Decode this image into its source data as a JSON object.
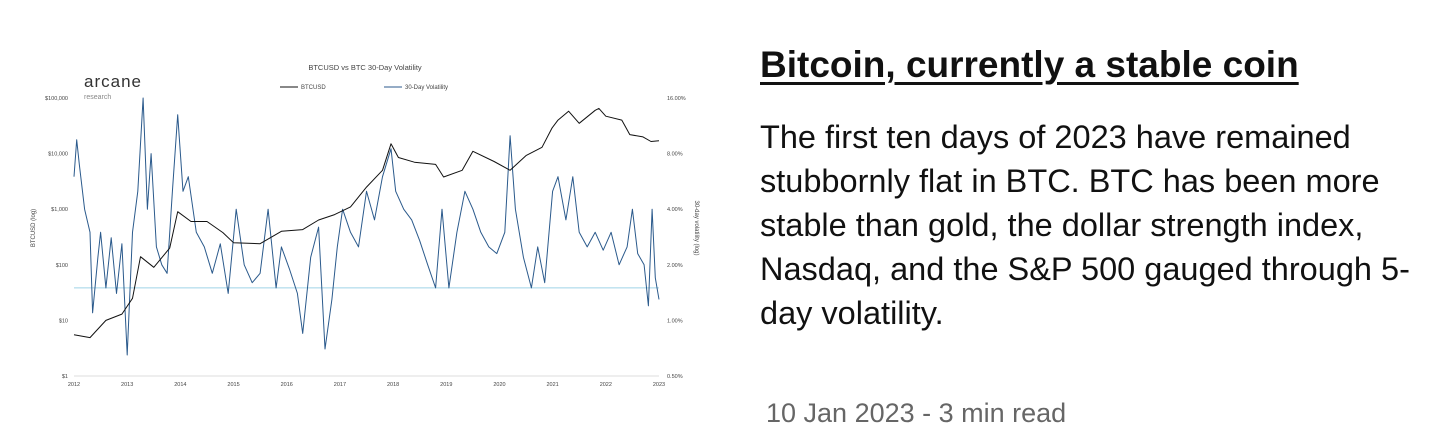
{
  "article": {
    "title": "Bitcoin, currently a stable coin",
    "body": "The first ten days of 2023 have remained stubbornly flat in BTC. BTC has been more stable than gold, the dollar strength index, Nasdaq, and the S&P 500 gauged through 5-day volatility.",
    "meta": "10 Jan 2023 - 3 min read"
  },
  "brand": {
    "name": "arcane",
    "sub": "research"
  },
  "colors": {
    "btc_line": "#111111",
    "volatility_line": "#2b5a8c",
    "reference_line": "#9fd3e6"
  },
  "chart_data": {
    "type": "line",
    "title": "BTCUSD vs BTC 30-Day Volatility",
    "ylabel": "BTCUSD (log)",
    "y2label": "30-day volatility (log)",
    "y_scale": "log",
    "y2_scale": "log",
    "x": [
      "2012",
      "2013",
      "2014",
      "2015",
      "2016",
      "2017",
      "2018",
      "2019",
      "2020",
      "2021",
      "2022",
      "2023"
    ],
    "y_ticks": [
      "$1",
      "$10",
      "$100",
      "$1,000",
      "$10,000",
      "$100,000"
    ],
    "y2_ticks": [
      "0.50%",
      "1.00%",
      "2.00%",
      "4.00%",
      "8.00%",
      "16.00%"
    ],
    "ylim": [
      1,
      100000
    ],
    "y2lim": [
      0.5,
      16
    ],
    "legend_position": "top-center",
    "reference_line_y2": 1.5,
    "series": [
      {
        "name": "BTCUSD",
        "axis": "left",
        "points": [
          [
            2012.0,
            5.5
          ],
          [
            2012.3,
            4.9
          ],
          [
            2012.6,
            10
          ],
          [
            2012.9,
            13
          ],
          [
            2013.1,
            25
          ],
          [
            2013.25,
            140
          ],
          [
            2013.5,
            90
          ],
          [
            2013.8,
            200
          ],
          [
            2013.95,
            900
          ],
          [
            2014.2,
            600
          ],
          [
            2014.5,
            600
          ],
          [
            2014.8,
            380
          ],
          [
            2015.0,
            250
          ],
          [
            2015.5,
            240
          ],
          [
            2015.9,
            400
          ],
          [
            2016.3,
            430
          ],
          [
            2016.6,
            640
          ],
          [
            2016.9,
            800
          ],
          [
            2017.2,
            1100
          ],
          [
            2017.5,
            2500
          ],
          [
            2017.8,
            5000
          ],
          [
            2017.96,
            15000
          ],
          [
            2018.1,
            8500
          ],
          [
            2018.4,
            7000
          ],
          [
            2018.8,
            6400
          ],
          [
            2018.95,
            3800
          ],
          [
            2019.3,
            5000
          ],
          [
            2019.5,
            11000
          ],
          [
            2019.9,
            7200
          ],
          [
            2020.2,
            5000
          ],
          [
            2020.5,
            9200
          ],
          [
            2020.8,
            13000
          ],
          [
            2020.99,
            29000
          ],
          [
            2021.1,
            40000
          ],
          [
            2021.3,
            58000
          ],
          [
            2021.5,
            35000
          ],
          [
            2021.8,
            60000
          ],
          [
            2021.87,
            65000
          ],
          [
            2022.0,
            47000
          ],
          [
            2022.3,
            40000
          ],
          [
            2022.45,
            22000
          ],
          [
            2022.7,
            20000
          ],
          [
            2022.85,
            16500
          ],
          [
            2023.0,
            17000
          ]
        ]
      },
      {
        "name": "30-Day Volatility",
        "axis": "right",
        "points": [
          [
            2012.0,
            6
          ],
          [
            2012.05,
            9.5
          ],
          [
            2012.1,
            7
          ],
          [
            2012.2,
            4
          ],
          [
            2012.3,
            3
          ],
          [
            2012.35,
            1.1
          ],
          [
            2012.45,
            2.2
          ],
          [
            2012.5,
            3
          ],
          [
            2012.6,
            1.5
          ],
          [
            2012.7,
            2.8
          ],
          [
            2012.8,
            1.4
          ],
          [
            2012.9,
            2.6
          ],
          [
            2013.0,
            0.65
          ],
          [
            2013.1,
            3
          ],
          [
            2013.2,
            5
          ],
          [
            2013.3,
            16
          ],
          [
            2013.38,
            4
          ],
          [
            2013.45,
            8
          ],
          [
            2013.55,
            2.5
          ],
          [
            2013.65,
            2
          ],
          [
            2013.75,
            1.8
          ],
          [
            2013.85,
            5
          ],
          [
            2013.95,
            13
          ],
          [
            2014.05,
            5
          ],
          [
            2014.15,
            6
          ],
          [
            2014.3,
            3
          ],
          [
            2014.45,
            2.5
          ],
          [
            2014.6,
            1.8
          ],
          [
            2014.75,
            2.6
          ],
          [
            2014.9,
            1.4
          ],
          [
            2015.05,
            4
          ],
          [
            2015.2,
            2
          ],
          [
            2015.35,
            1.6
          ],
          [
            2015.5,
            1.8
          ],
          [
            2015.65,
            4
          ],
          [
            2015.8,
            1.5
          ],
          [
            2015.9,
            2.5
          ],
          [
            2016.05,
            1.9
          ],
          [
            2016.2,
            1.4
          ],
          [
            2016.3,
            0.85
          ],
          [
            2016.45,
            2.2
          ],
          [
            2016.6,
            3.2
          ],
          [
            2016.72,
            0.7
          ],
          [
            2016.85,
            1.3
          ],
          [
            2016.95,
            2.5
          ],
          [
            2017.05,
            4
          ],
          [
            2017.2,
            3
          ],
          [
            2017.35,
            2.5
          ],
          [
            2017.5,
            5
          ],
          [
            2017.65,
            3.5
          ],
          [
            2017.8,
            6
          ],
          [
            2017.96,
            8.5
          ],
          [
            2018.05,
            5
          ],
          [
            2018.2,
            4
          ],
          [
            2018.35,
            3.5
          ],
          [
            2018.5,
            2.7
          ],
          [
            2018.65,
            2
          ],
          [
            2018.8,
            1.5
          ],
          [
            2018.92,
            4
          ],
          [
            2019.05,
            1.5
          ],
          [
            2019.2,
            3
          ],
          [
            2019.35,
            5
          ],
          [
            2019.5,
            4
          ],
          [
            2019.65,
            3
          ],
          [
            2019.8,
            2.5
          ],
          [
            2019.95,
            2.3
          ],
          [
            2020.1,
            3
          ],
          [
            2020.2,
            10
          ],
          [
            2020.3,
            4
          ],
          [
            2020.45,
            2.2
          ],
          [
            2020.6,
            1.5
          ],
          [
            2020.72,
            2.5
          ],
          [
            2020.85,
            1.6
          ],
          [
            2021.0,
            5
          ],
          [
            2021.1,
            6
          ],
          [
            2021.25,
            3.5
          ],
          [
            2021.38,
            6
          ],
          [
            2021.5,
            3
          ],
          [
            2021.65,
            2.5
          ],
          [
            2021.8,
            3
          ],
          [
            2021.95,
            2.4
          ],
          [
            2022.1,
            3
          ],
          [
            2022.25,
            2
          ],
          [
            2022.4,
            2.5
          ],
          [
            2022.5,
            4
          ],
          [
            2022.6,
            2.3
          ],
          [
            2022.72,
            2
          ],
          [
            2022.8,
            1.2
          ],
          [
            2022.87,
            4
          ],
          [
            2022.93,
            1.7
          ],
          [
            2023.0,
            1.3
          ]
        ]
      }
    ]
  }
}
